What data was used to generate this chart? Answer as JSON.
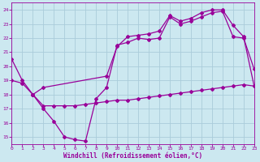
{
  "xlabel": "Windchill (Refroidissement éolien,°C)",
  "bg_color": "#cce8f0",
  "grid_color": "#aaccda",
  "line_color": "#990099",
  "xlim": [
    0,
    23
  ],
  "ylim": [
    14.5,
    24.5
  ],
  "yticks": [
    15,
    16,
    17,
    18,
    19,
    20,
    21,
    22,
    23,
    24
  ],
  "xticks": [
    0,
    1,
    2,
    3,
    4,
    5,
    6,
    7,
    8,
    9,
    10,
    11,
    12,
    13,
    14,
    15,
    16,
    17,
    18,
    19,
    20,
    21,
    22,
    23
  ],
  "line1_x": [
    0,
    1,
    2,
    3,
    4,
    5,
    6,
    7,
    8,
    9,
    10,
    11,
    12,
    13,
    14,
    15,
    16,
    17,
    18,
    19,
    20,
    21,
    22,
    23
  ],
  "line1_y": [
    20.5,
    19.0,
    18.0,
    17.0,
    16.1,
    15.0,
    14.8,
    14.7,
    17.7,
    18.5,
    21.5,
    21.7,
    22.0,
    21.9,
    22.0,
    23.5,
    23.0,
    23.2,
    23.5,
    23.8,
    23.9,
    22.1,
    22.0,
    19.8
  ],
  "line2_x": [
    0,
    1,
    2,
    3,
    4,
    5,
    6,
    7,
    8,
    9,
    10,
    11,
    12,
    13,
    14,
    15,
    16,
    17,
    18,
    19,
    20,
    21,
    22,
    23
  ],
  "line2_y": [
    19.0,
    18.8,
    18.0,
    17.2,
    17.2,
    17.2,
    17.2,
    17.3,
    17.4,
    17.5,
    17.6,
    17.6,
    17.7,
    17.8,
    17.9,
    18.0,
    18.1,
    18.2,
    18.3,
    18.4,
    18.5,
    18.6,
    18.7,
    18.6
  ],
  "line3_x": [
    2,
    3,
    9,
    10,
    11,
    12,
    13,
    14,
    15,
    16,
    17,
    18,
    19,
    20,
    21,
    22,
    23
  ],
  "line3_y": [
    18.0,
    18.5,
    19.3,
    21.4,
    22.1,
    22.2,
    22.3,
    22.5,
    23.6,
    23.2,
    23.4,
    23.8,
    24.0,
    24.0,
    22.9,
    22.1,
    18.6
  ]
}
